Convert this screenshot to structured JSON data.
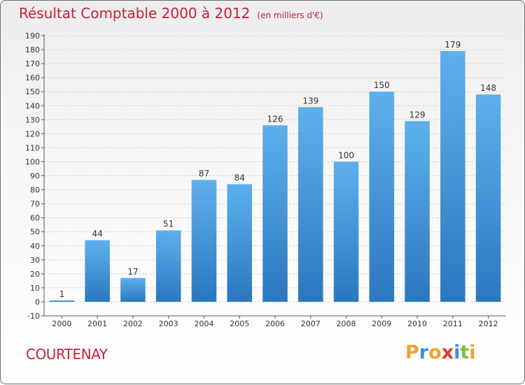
{
  "title": "Résultat Comptable 2000 à 2012",
  "subtitle": "(en milliers d'€)",
  "commune": "COURTENAY",
  "logo": {
    "letters": [
      "P",
      "r",
      "o",
      "x",
      "i",
      "t",
      "i"
    ],
    "colors": [
      "#f0a030",
      "#3a8fd8",
      "#f0a030",
      "#e23a2e",
      "#3a8fd8",
      "#7dbd3a",
      "#f0a030"
    ]
  },
  "colors": {
    "bar_light": "#5eb0ec",
    "bar_dark": "#2a78c0",
    "title": "#c8203a"
  },
  "chart_data": {
    "type": "bar",
    "title": "Résultat Comptable 2000 à 2012",
    "subtitle": "(en milliers d'€)",
    "categories": [
      "2000",
      "2001",
      "2002",
      "2003",
      "2004",
      "2005",
      "2006",
      "2007",
      "2008",
      "2009",
      "2010",
      "2011",
      "2012"
    ],
    "values": [
      1,
      44,
      17,
      51,
      87,
      84,
      126,
      139,
      100,
      150,
      129,
      179,
      148
    ],
    "ylim": [
      -10,
      190
    ],
    "yticks": [
      -10,
      0,
      10,
      20,
      30,
      40,
      50,
      60,
      70,
      80,
      90,
      100,
      110,
      120,
      130,
      140,
      150,
      160,
      170,
      180,
      190
    ],
    "grid": true,
    "legend": "none"
  }
}
